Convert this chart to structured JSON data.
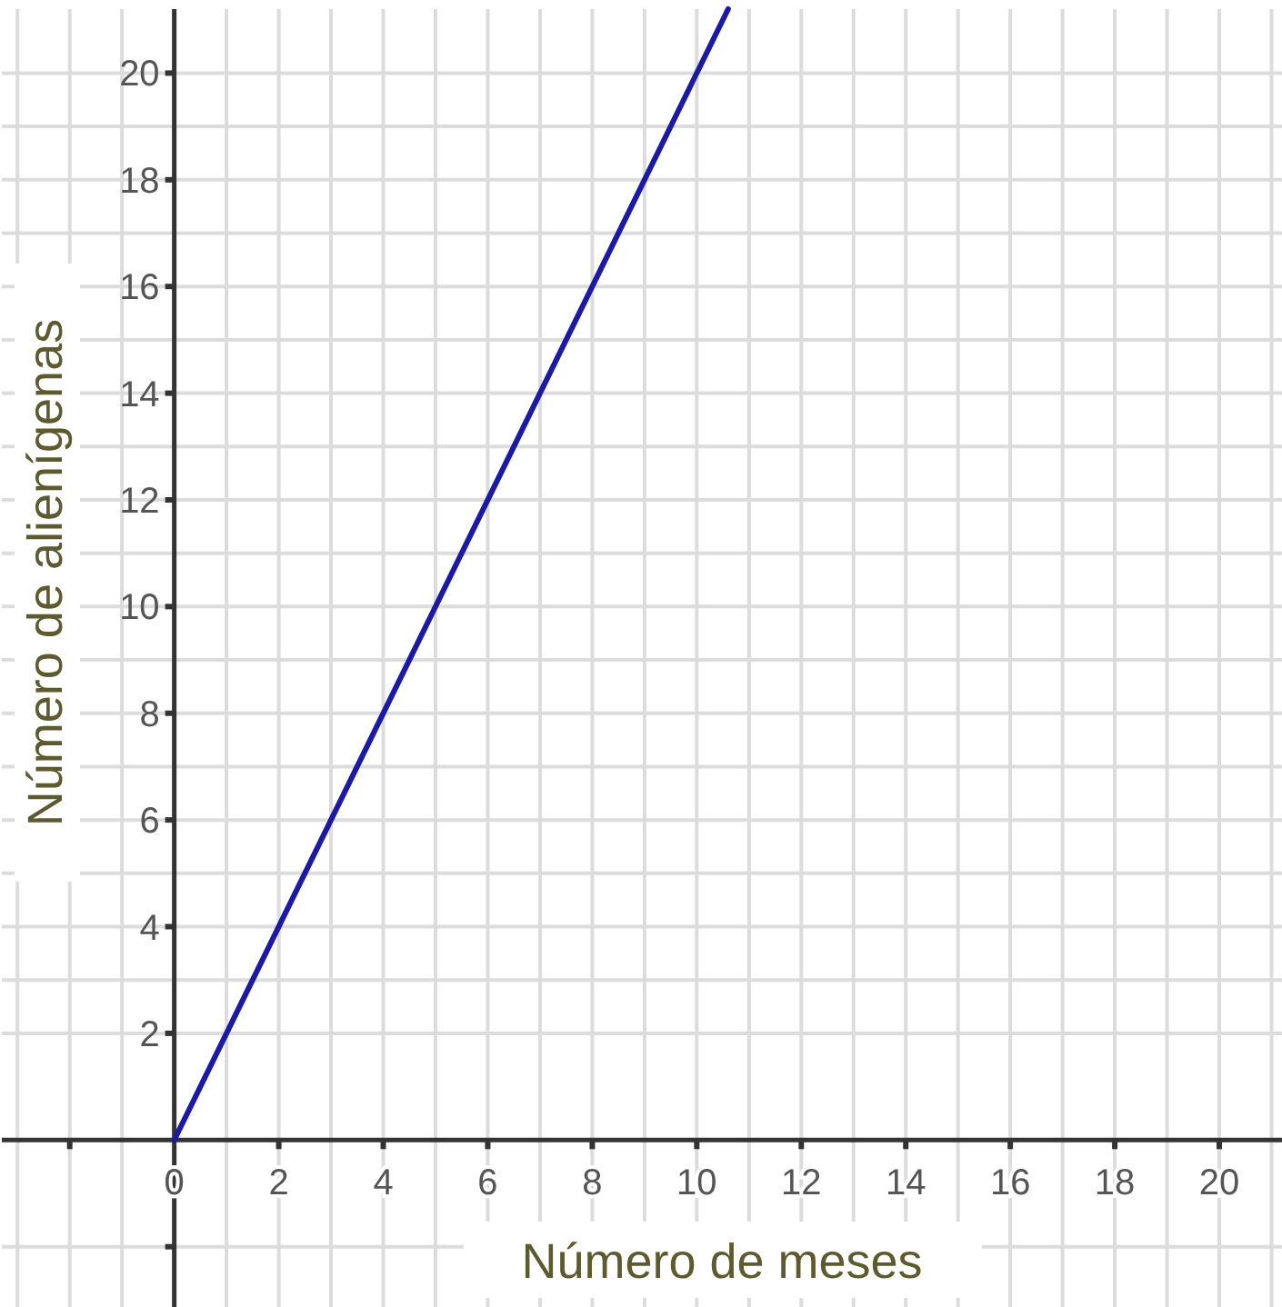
{
  "chart_data": {
    "type": "line",
    "xlabel": "Número de meses",
    "ylabel": "Número de alienígenas",
    "x": [
      0,
      10.6
    ],
    "series": [
      {
        "color": "#1a1aa6",
        "values": [
          0,
          21.2
        ]
      }
    ],
    "xlim": [
      -3.3,
      21.2
    ],
    "ylim": [
      -3.13,
      21.2
    ],
    "xticks": [
      {
        "value": -2,
        "label": null
      },
      0,
      2,
      4,
      6,
      8,
      10,
      12,
      14,
      16,
      18,
      20
    ],
    "yticks": [
      {
        "value": -2,
        "label": null
      },
      2,
      4,
      6,
      8,
      10,
      12,
      14,
      16,
      18,
      20
    ],
    "grid": true,
    "marker": "none",
    "line_style": "solid"
  }
}
